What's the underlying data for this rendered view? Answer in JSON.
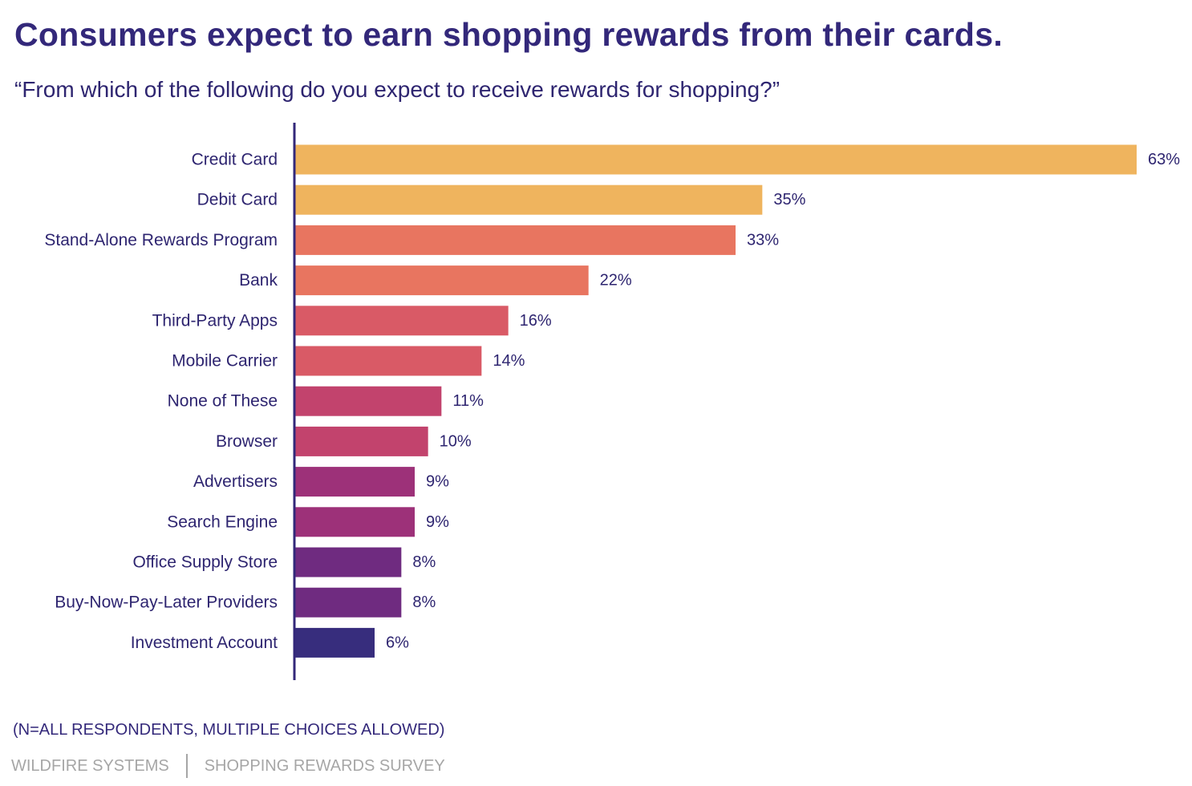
{
  "chart_data": {
    "type": "bar",
    "orientation": "horizontal",
    "title": "Consumers expect to earn shopping rewards from their cards.",
    "subtitle": "“From which of the following do you expect to receive rewards for shopping?”",
    "categories": [
      "Credit Card",
      "Debit Card",
      "Stand-Alone Rewards Program",
      "Bank",
      "Third-Party Apps",
      "Mobile Carrier",
      "None of These",
      "Browser",
      "Advertisers",
      "Search Engine",
      "Office Supply Store",
      "Buy-Now-Pay-Later Providers",
      "Investment Account"
    ],
    "values": [
      63,
      35,
      33,
      22,
      16,
      14,
      11,
      10,
      9,
      9,
      8,
      8,
      6
    ],
    "value_labels": [
      "63%",
      "35%",
      "33%",
      "22%",
      "16%",
      "14%",
      "11%",
      "10%",
      "9%",
      "9%",
      "8%",
      "8%",
      "6%"
    ],
    "colors": [
      "#efb45e",
      "#efb45e",
      "#e87560",
      "#e87560",
      "#d95a66",
      "#d95a66",
      "#c2436d",
      "#c2436d",
      "#9d3179",
      "#9d3179",
      "#6f2b80",
      "#6f2b80",
      "#372d7d"
    ],
    "axis_color": "#33287a",
    "xlim": [
      0,
      63
    ],
    "grid": false,
    "legend": "none"
  },
  "note": "(N=ALL RESPONDENTS, MULTIPLE CHOICES ALLOWED)",
  "footer": {
    "company": "WILDFIRE SYSTEMS",
    "survey": "SHOPPING REWARDS SURVEY"
  }
}
